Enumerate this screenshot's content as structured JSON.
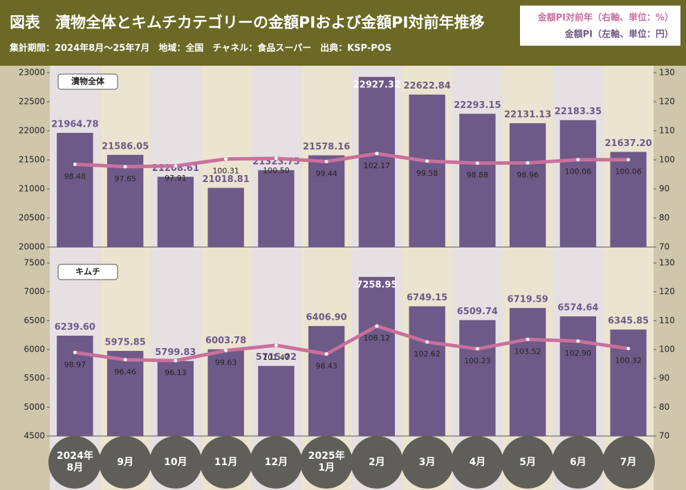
{
  "header": {
    "title": "図表　漬物全体とキムチカテゴリーの金額PIおよび金額PI対前年推移",
    "subtitle": "集計期間：2024年8月～25年7月　地域：全国　チャネル：食品スーパー　出典：KSP-POS"
  },
  "chart_data": [
    {
      "type": "combo",
      "title": "漬物全体",
      "series": [
        {
          "name": "金額PI（左軸、単位：円）",
          "type": "bar",
          "color": "#6d5a88",
          "values": [
            21964.78,
            21586.05,
            21208.61,
            21018.81,
            21323.75,
            21578.16,
            22927.32,
            22622.84,
            22293.15,
            22131.13,
            22183.35,
            21637.2
          ],
          "value_labels": [
            "21964.78",
            "21586.05",
            "21208.61",
            "21018.81",
            "21323.75",
            "21578.16",
            "22927.32",
            "22622.84",
            "22293.15",
            "22131.13",
            "22183.35",
            "21637.20"
          ]
        },
        {
          "name": "金額PI対前年（右軸、単位：%）",
          "type": "line",
          "axis": "y2",
          "color": "#c9709c",
          "values": [
            98.48,
            97.65,
            97.91,
            100.31,
            100.5,
            99.44,
            102.17,
            99.58,
            98.88,
            98.96,
            100.06,
            100.06
          ],
          "value_labels": [
            "98.48",
            "97.65",
            "97.91",
            "100.31",
            "100.50",
            "99.44",
            "102.17",
            "99.58",
            "98.88",
            "98.96",
            "100.06",
            "100.06"
          ]
        }
      ],
      "ylim": [
        20000,
        23000
      ],
      "yticks": [
        20000,
        20500,
        21000,
        21500,
        22000,
        22500,
        23000
      ],
      "y2lim": [
        70,
        130
      ],
      "y2ticks": [
        70,
        80,
        90,
        100,
        110,
        120,
        130
      ]
    },
    {
      "type": "combo",
      "title": "キムチ",
      "categories": [
        "2024年\n8月",
        "9月",
        "10月",
        "11月",
        "12月",
        "2025年\n1月",
        "2月",
        "3月",
        "4月",
        "5月",
        "6月",
        "7月"
      ],
      "series": [
        {
          "name": "金額PI（左軸、単位：円）",
          "type": "bar",
          "color": "#6d5a88",
          "values": [
            6239.6,
            5975.85,
            5799.83,
            6003.78,
            5715.02,
            6406.9,
            7258.95,
            6749.15,
            6509.74,
            6719.59,
            6574.64,
            6345.85
          ],
          "value_labels": [
            "6239.60",
            "5975.85",
            "5799.83",
            "6003.78",
            "5715.02",
            "6406.90",
            "7258.95",
            "6749.15",
            "6509.74",
            "6719.59",
            "6574.64",
            "6345.85"
          ]
        },
        {
          "name": "金額PI対前年（右軸、単位：%）",
          "type": "line",
          "axis": "y2",
          "color": "#c9709c",
          "values": [
            98.97,
            96.46,
            96.13,
            99.63,
            101.47,
            98.43,
            108.12,
            102.62,
            100.23,
            103.52,
            102.9,
            100.32
          ],
          "value_labels": [
            "98.97",
            "96.46",
            "96.13",
            "99.63",
            "101.47",
            "98.43",
            "108.12",
            "102.62",
            "100.23",
            "103.52",
            "102.90",
            "100.32"
          ]
        }
      ],
      "ylim": [
        4500,
        7500
      ],
      "yticks": [
        4500,
        5000,
        5500,
        6000,
        6500,
        7000,
        7500
      ],
      "y2lim": [
        70,
        130
      ],
      "y2ticks": [
        70,
        80,
        90,
        100,
        110,
        120,
        130
      ]
    }
  ]
}
